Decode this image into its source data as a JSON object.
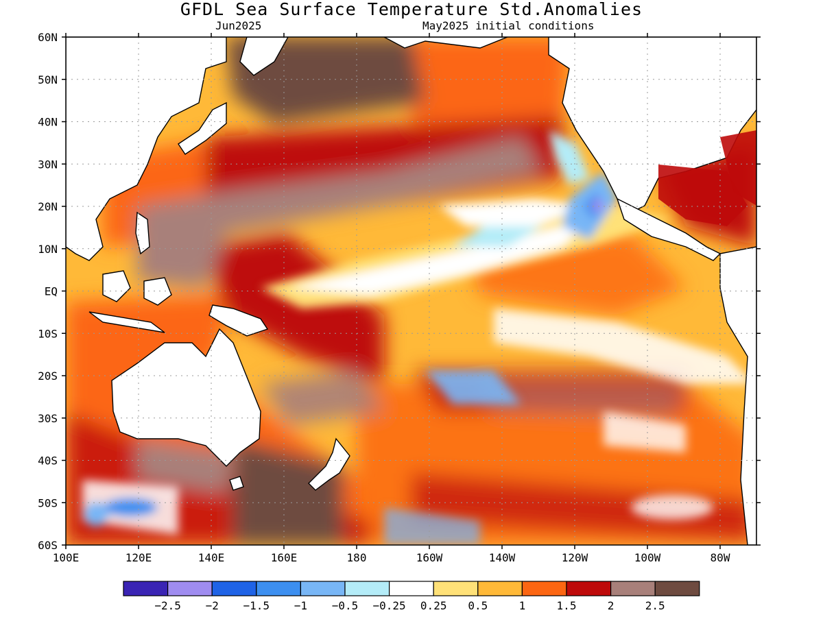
{
  "title": "GFDL Sea Surface Temperature Std.Anomalies",
  "forecast_month": "Jun2025",
  "initial_conditions": "May2025 initial conditions",
  "map": {
    "lon_range": [
      100,
      290
    ],
    "lat_range": [
      -60,
      60
    ],
    "lat_labels": [
      "60N",
      "50N",
      "40N",
      "30N",
      "20N",
      "10N",
      "EQ",
      "10S",
      "20S",
      "30S",
      "40S",
      "50S",
      "60S"
    ],
    "lon_labels": [
      "100E",
      "120E",
      "140E",
      "160E",
      "180",
      "160W",
      "140W",
      "120W",
      "100W",
      "80W"
    ],
    "grid": true
  },
  "legend": {
    "colors": [
      "#3a24b4",
      "#9f8cf0",
      "#1f63e6",
      "#3d8ff0",
      "#78b6f6",
      "#b4ecf8",
      "#ffffff",
      "#ffe178",
      "#ffb938",
      "#fc6612",
      "#be0a0a",
      "#a8807a",
      "#6e4b40"
    ],
    "labels": [
      "−2.5",
      "−2",
      "−1.5",
      "−1",
      "−0.5",
      "−0.25",
      "0.25",
      "0.5",
      "1",
      "1.5",
      "2",
      "2.5"
    ]
  }
}
